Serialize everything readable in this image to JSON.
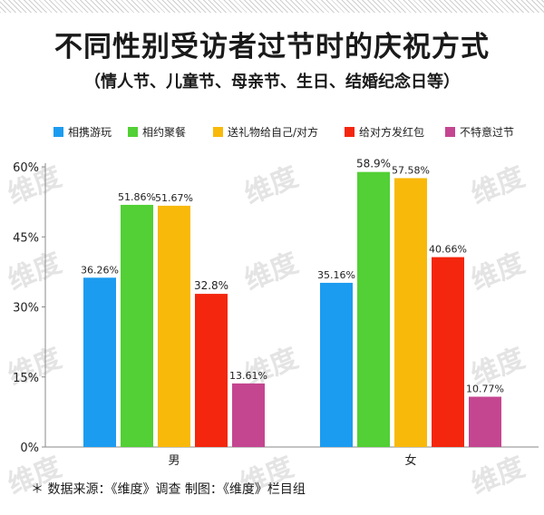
{
  "title": "不同性别受访者过节时的庆祝方式",
  "subtitle": "（情人节、儿童节、母亲节、生日、结婚纪念日等）",
  "source": "＊ 数据来源：《维度》调查   制图：《维度》栏目组",
  "watermark_text": "维度",
  "chart_data": {
    "type": "bar",
    "categories": [
      "男",
      "女"
    ],
    "series": [
      {
        "name": "相携游玩",
        "color": "#1c9cf0",
        "values": [
          36.26,
          35.16
        ],
        "labels": [
          "36.26%",
          "35.16%"
        ]
      },
      {
        "name": "相约聚餐",
        "color": "#52d035",
        "values": [
          51.86,
          58.9
        ],
        "labels": [
          "51.86%",
          "58.9%"
        ]
      },
      {
        "name": "送礼物给自己/对方",
        "color": "#f9b90a",
        "values": [
          51.67,
          57.58
        ],
        "labels": [
          "51.67%",
          "57.58%"
        ]
      },
      {
        "name": "给对方发红包",
        "color": "#f4260d",
        "values": [
          32.8,
          40.66
        ],
        "labels": [
          "32.8%",
          "40.66%"
        ]
      },
      {
        "name": "不特意过节",
        "color": "#c44690",
        "values": [
          13.61,
          10.77
        ],
        "labels": [
          "13.61%",
          "10.77%"
        ]
      }
    ],
    "yticks": [
      "0%",
      "15%",
      "30%",
      "45%",
      "60%"
    ],
    "ylim": [
      0,
      60
    ],
    "legend": "top",
    "grid": false
  }
}
